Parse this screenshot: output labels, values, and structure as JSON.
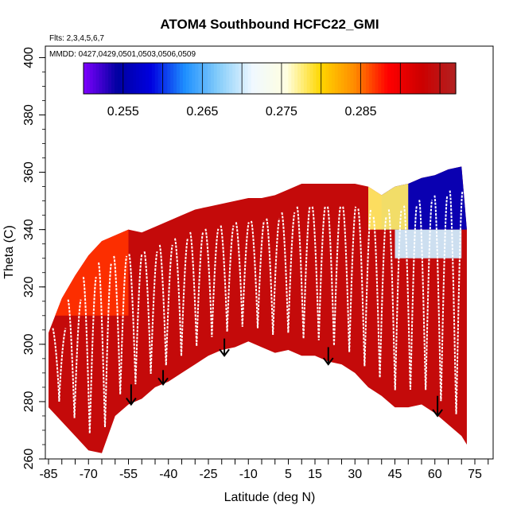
{
  "chart_data": {
    "type": "heatmap",
    "title": "ATOM4 Southbound HCFC22_GMI",
    "flights_label": "Flts: 2,3,4,5,6,7",
    "dates_label": "MMDD: 0427,0429,0501,0503,0506,0509",
    "xlabel": "Latitude (deg N)",
    "ylabel": "Theta (C)",
    "xlim": [
      -87,
      87
    ],
    "ylim": [
      260,
      404
    ],
    "x_ticks": [
      -85,
      -70,
      -55,
      -40,
      -25,
      -10,
      5,
      15,
      30,
      45,
      60,
      75
    ],
    "y_ticks": [
      260,
      280,
      300,
      320,
      340,
      360,
      380,
      400
    ],
    "colorbar": {
      "range": [
        0.25,
        0.297
      ],
      "tick_values": [
        0.255,
        0.265,
        0.275,
        0.285
      ],
      "tick_labels": [
        "0.255",
        "0.265",
        "0.275",
        "0.285"
      ],
      "colors": [
        "#7f00ff",
        "#0000a0",
        "#0000e0",
        "#1e90ff",
        "#87cefa",
        "#f0f8ff",
        "#ffffe0",
        "#ffd700",
        "#ff8c00",
        "#ff0000",
        "#cc0000",
        "#b22222"
      ]
    },
    "field": {
      "lat": [
        -85,
        -80,
        -75,
        -70,
        -65,
        -60,
        -55,
        -50,
        -45,
        -40,
        -35,
        -30,
        -25,
        -20,
        -15,
        -10,
        -5,
        0,
        5,
        10,
        15,
        20,
        25,
        30,
        35,
        40,
        45,
        50,
        55,
        60,
        65,
        70,
        72
      ],
      "theta_bottom": [
        278,
        273,
        268,
        263,
        262,
        275,
        279,
        281,
        285,
        287,
        290,
        293,
        296,
        298,
        299,
        301,
        299,
        297,
        298,
        296,
        296,
        294,
        293,
        290,
        285,
        282,
        278,
        278,
        279,
        276,
        272,
        268,
        265
      ],
      "theta_top": [
        304,
        316,
        324,
        331,
        336,
        338,
        340,
        339,
        341,
        343,
        345,
        347,
        348,
        349,
        350,
        351,
        351,
        352,
        354,
        356,
        356,
        356,
        356,
        356,
        355,
        352,
        355,
        356,
        358,
        359,
        361,
        362,
        340
      ],
      "value_ranges_note": "",
      "cells": [
        {
          "lat_min": 40,
          "lat_max": 72,
          "theta_min": 340,
          "theta_max": 362,
          "value": 0.256
        },
        {
          "lat_min": 45,
          "lat_max": 70,
          "theta_min": 330,
          "theta_max": 340,
          "value": 0.27
        },
        {
          "lat_min": 35,
          "lat_max": 50,
          "theta_min": 340,
          "theta_max": 356,
          "value": 0.278
        },
        {
          "lat_min": -85,
          "lat_max": -55,
          "theta_min": 310,
          "theta_max": 340,
          "value": 0.287
        },
        {
          "lat_min": -85,
          "lat_max": 72,
          "theta_min": 260,
          "theta_max": 340,
          "value": 0.294
        }
      ]
    },
    "profiles": {
      "color": "#ffffff",
      "count": 27
    },
    "arrows": [
      {
        "lat": -54,
        "theta_start": 286,
        "theta_end": 279
      },
      {
        "lat": -42,
        "theta_start": 291,
        "theta_end": 286
      },
      {
        "lat": -19,
        "theta_start": 302,
        "theta_end": 296
      },
      {
        "lat": 20,
        "theta_start": 299,
        "theta_end": 293
      },
      {
        "lat": 61,
        "theta_start": 282,
        "theta_end": 275
      }
    ]
  }
}
